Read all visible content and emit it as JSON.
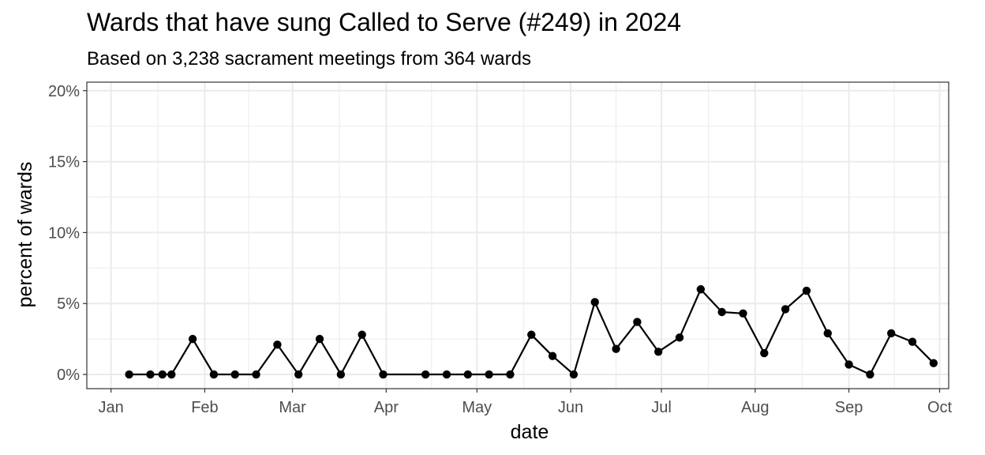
{
  "chart_data": {
    "type": "line",
    "title": "Wards that have sung Called to Serve (#249) in 2024",
    "subtitle": "Based on 3,238 sacrament meetings from 364 wards",
    "xlabel": "date",
    "ylabel": "percent of wards",
    "x_ticks": [
      {
        "date": "2024-01-01",
        "label": "Jan"
      },
      {
        "date": "2024-02-01",
        "label": "Feb"
      },
      {
        "date": "2024-03-01",
        "label": "Mar"
      },
      {
        "date": "2024-04-01",
        "label": "Apr"
      },
      {
        "date": "2024-05-01",
        "label": "May"
      },
      {
        "date": "2024-06-01",
        "label": "Jun"
      },
      {
        "date": "2024-07-01",
        "label": "Jul"
      },
      {
        "date": "2024-08-01",
        "label": "Aug"
      },
      {
        "date": "2024-09-01",
        "label": "Sep"
      },
      {
        "date": "2024-10-01",
        "label": "Oct"
      }
    ],
    "y_ticks": [
      {
        "value": 0,
        "label": "0%"
      },
      {
        "value": 5,
        "label": "5%"
      },
      {
        "value": 10,
        "label": "10%"
      },
      {
        "value": 15,
        "label": "15%"
      },
      {
        "value": 20,
        "label": "20%"
      }
    ],
    "xlim": [
      "2023-12-24",
      "2024-10-04"
    ],
    "ylim": [
      -1,
      20.6
    ],
    "grid": true,
    "series": [
      {
        "x": [
          "2024-01-07",
          "2024-01-14",
          "2024-01-18",
          "2024-01-21",
          "2024-01-28",
          "2024-02-04",
          "2024-02-11",
          "2024-02-18",
          "2024-02-25",
          "2024-03-03",
          "2024-03-10",
          "2024-03-17",
          "2024-03-24",
          "2024-03-31",
          "2024-04-14",
          "2024-04-21",
          "2024-04-28",
          "2024-05-05",
          "2024-05-12",
          "2024-05-19",
          "2024-05-26",
          "2024-06-02",
          "2024-06-09",
          "2024-06-16",
          "2024-06-23",
          "2024-06-30",
          "2024-07-07",
          "2024-07-14",
          "2024-07-21",
          "2024-07-28",
          "2024-08-04",
          "2024-08-11",
          "2024-08-18",
          "2024-08-25",
          "2024-09-01",
          "2024-09-08",
          "2024-09-15",
          "2024-09-22",
          "2024-09-29"
        ],
        "y": [
          0,
          0,
          0,
          0,
          2.5,
          0,
          0,
          0,
          2.1,
          0,
          2.5,
          0,
          2.8,
          0,
          0,
          0,
          0,
          0,
          0,
          2.8,
          1.3,
          0,
          5.1,
          1.8,
          3.7,
          1.6,
          2.6,
          6.0,
          4.4,
          4.3,
          1.5,
          4.6,
          5.9,
          2.9,
          0.7,
          0,
          2.9,
          2.3,
          0.8
        ]
      }
    ]
  }
}
